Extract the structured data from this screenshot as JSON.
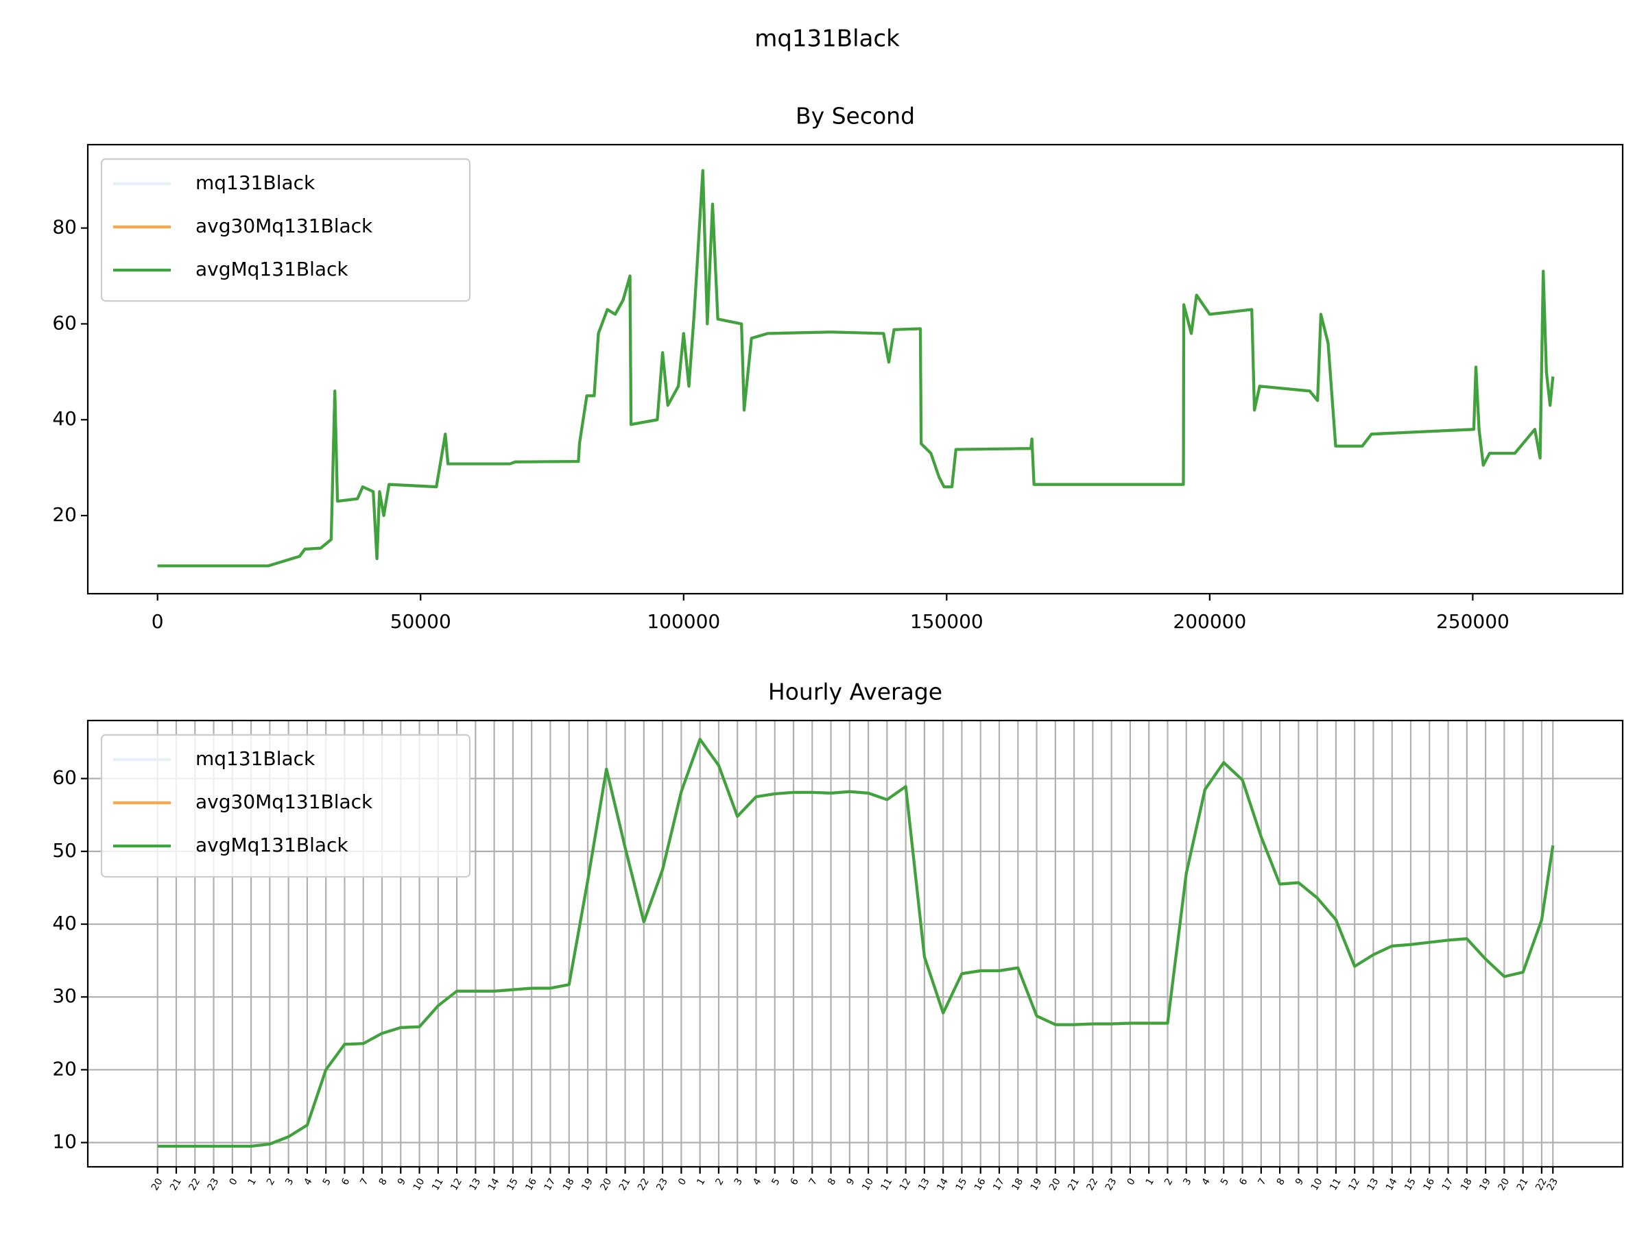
{
  "title": "mq131Black",
  "chart_data": [
    {
      "type": "line",
      "title": "By Second",
      "x": [
        0,
        21000,
        24000,
        27000,
        28000,
        31000,
        33000,
        33700,
        34200,
        38000,
        39000,
        41000,
        41700,
        42200,
        43000,
        44000,
        53000,
        54700,
        55200,
        67000,
        68000,
        80000,
        80200,
        81600,
        83000,
        83800,
        85500,
        87000,
        88500,
        89800,
        90000,
        95000,
        96000,
        97000,
        99000,
        100000,
        101000,
        102000,
        103650,
        104500,
        105500,
        106500,
        111000,
        111500,
        112900,
        116000,
        128000,
        138000,
        139000,
        140000,
        145000,
        145150,
        147000,
        148560,
        149500,
        151000,
        151760,
        166000,
        166200,
        166600,
        195000,
        195070,
        196500,
        197500,
        200000,
        208000,
        208500,
        209500,
        219000,
        220500,
        221130,
        222500,
        223940,
        229000,
        230750,
        250200,
        250600,
        251200,
        252000,
        253200,
        258000,
        261800,
        262800,
        263400,
        264000,
        264700,
        265240
      ],
      "series": [
        {
          "name": "mq131Black",
          "color": "#e6eff7",
          "values": [
            9.5,
            9.5,
            10.5,
            11.5,
            13,
            13.2,
            15,
            46,
            23,
            23.5,
            26,
            25,
            11,
            25,
            20,
            26.5,
            26,
            37,
            30.8,
            30.8,
            31.2,
            31.3,
            35,
            45,
            45,
            58,
            63,
            62,
            65,
            70,
            39,
            40,
            54,
            43,
            47,
            58,
            47,
            62,
            92,
            60,
            85,
            61,
            60,
            42,
            57,
            58,
            58.3,
            58,
            52,
            58.8,
            59,
            35,
            33,
            28,
            26,
            26,
            33.8,
            34,
            36,
            26.5,
            26.5,
            64,
            58,
            66,
            62,
            63,
            42,
            47,
            46,
            44,
            62,
            56,
            34.5,
            34.5,
            37,
            38,
            51,
            38,
            30.5,
            33,
            33,
            38,
            32,
            71,
            50,
            43,
            49
          ]
        },
        {
          "name": "avg30Mq131Black",
          "color": "#ffa64d",
          "values": [
            9.5,
            9.5,
            10.5,
            11.5,
            13,
            13.2,
            15,
            46,
            23,
            23.5,
            26,
            25,
            11,
            25,
            20,
            26.5,
            26,
            37,
            30.8,
            30.8,
            31.2,
            31.3,
            35,
            45,
            45,
            58,
            63,
            62,
            65,
            70,
            39,
            40,
            54,
            43,
            47,
            58,
            47,
            62,
            92,
            60,
            85,
            61,
            60,
            42,
            57,
            58,
            58.3,
            58,
            52,
            58.8,
            59,
            35,
            33,
            28,
            26,
            26,
            33.8,
            34,
            36,
            26.5,
            26.5,
            64,
            58,
            66,
            62,
            63,
            42,
            47,
            46,
            44,
            62,
            56,
            34.5,
            34.5,
            37,
            38,
            51,
            38,
            30.5,
            33,
            33,
            38,
            32,
            71,
            50,
            43,
            49
          ]
        },
        {
          "name": "avgMq131Black",
          "color": "#3ea33e",
          "values": [
            9.5,
            9.5,
            10.5,
            11.5,
            13,
            13.2,
            15,
            46,
            23,
            23.5,
            26,
            25,
            11,
            25,
            20,
            26.5,
            26,
            37,
            30.8,
            30.8,
            31.2,
            31.3,
            35,
            45,
            45,
            58,
            63,
            62,
            65,
            70,
            39,
            40,
            54,
            43,
            47,
            58,
            47,
            62,
            92,
            60,
            85,
            61,
            60,
            42,
            57,
            58,
            58.3,
            58,
            52,
            58.8,
            59,
            35,
            33,
            28,
            26,
            26,
            33.8,
            34,
            36,
            26.5,
            26.5,
            64,
            58,
            66,
            62,
            63,
            42,
            47,
            46,
            44,
            62,
            56,
            34.5,
            34.5,
            37,
            38,
            51,
            38,
            30.5,
            33,
            33,
            38,
            32,
            71,
            50,
            43,
            49
          ]
        }
      ],
      "xlim": [
        -13260,
        278500
      ],
      "ylim": [
        3.7,
        97.4
      ],
      "xticks": [
        0,
        50000,
        100000,
        150000,
        200000,
        250000
      ],
      "yticks": [
        20,
        40,
        60,
        80
      ],
      "grid": false,
      "legend": "upper left"
    },
    {
      "type": "line",
      "title": "Hourly Average",
      "x": [
        0,
        1,
        2,
        3,
        4,
        5,
        6,
        7,
        8,
        9,
        10,
        11,
        12,
        13,
        14,
        15,
        16,
        17,
        18,
        19,
        20,
        21,
        22,
        23,
        24,
        25,
        26,
        27,
        28,
        29,
        30,
        31,
        32,
        33,
        34,
        35,
        36,
        37,
        38,
        39,
        40,
        41,
        42,
        43,
        44,
        45,
        46,
        47,
        48,
        49,
        50,
        51,
        52,
        53,
        54,
        55,
        56,
        57,
        58,
        59,
        60,
        61,
        62,
        63,
        64,
        65,
        66,
        67,
        68,
        69,
        70,
        71,
        72,
        73,
        74,
        74.6
      ],
      "series": [
        {
          "name": "mq131Black",
          "color": "#e6eff7",
          "values": [
            9.5,
            9.5,
            9.5,
            9.5,
            9.5,
            9.5,
            9.8,
            10.8,
            12.4,
            20,
            23.5,
            23.6,
            25,
            25.8,
            25.9,
            28.8,
            30.8,
            30.8,
            30.8,
            31,
            31.2,
            31.2,
            31.7,
            46,
            61.3,
            50.5,
            40.3,
            47.5,
            58.2,
            65.4,
            61.8,
            54.8,
            57.5,
            57.9,
            58.1,
            58.1,
            58,
            58.2,
            58,
            57.1,
            58.9,
            35.5,
            27.8,
            33.2,
            33.6,
            33.6,
            34,
            27.4,
            26.2,
            26.2,
            26.3,
            26.3,
            26.4,
            26.4,
            26.4,
            47,
            58.5,
            62.2,
            59.8,
            52,
            45.5,
            45.7,
            43.6,
            40.6,
            34.2,
            35.8,
            37,
            37.2,
            37.5,
            37.8,
            38,
            35.2,
            32.8,
            33.4,
            40.6,
            50.8
          ]
        },
        {
          "name": "avg30Mq131Black",
          "color": "#ffa64d",
          "values": [
            9.5,
            9.5,
            9.5,
            9.5,
            9.5,
            9.5,
            9.8,
            10.8,
            12.4,
            20,
            23.5,
            23.6,
            25,
            25.8,
            25.9,
            28.8,
            30.8,
            30.8,
            30.8,
            31,
            31.2,
            31.2,
            31.7,
            46,
            61.3,
            50.5,
            40.3,
            47.5,
            58.2,
            65.4,
            61.8,
            54.8,
            57.5,
            57.9,
            58.1,
            58.1,
            58,
            58.2,
            58,
            57.1,
            58.9,
            35.5,
            27.8,
            33.2,
            33.6,
            33.6,
            34,
            27.4,
            26.2,
            26.2,
            26.3,
            26.3,
            26.4,
            26.4,
            26.4,
            47,
            58.5,
            62.2,
            59.8,
            52,
            45.5,
            45.7,
            43.6,
            40.6,
            34.2,
            35.8,
            37,
            37.2,
            37.5,
            37.8,
            38,
            35.2,
            32.8,
            33.4,
            40.6,
            50.8
          ]
        },
        {
          "name": "avgMq131Black",
          "color": "#3ea33e",
          "values": [
            9.5,
            9.5,
            9.5,
            9.5,
            9.5,
            9.5,
            9.8,
            10.8,
            12.4,
            20,
            23.5,
            23.6,
            25,
            25.8,
            25.9,
            28.8,
            30.8,
            30.8,
            30.8,
            31,
            31.2,
            31.2,
            31.7,
            46,
            61.3,
            50.5,
            40.3,
            47.5,
            58.2,
            65.4,
            61.8,
            54.8,
            57.5,
            57.9,
            58.1,
            58.1,
            58,
            58.2,
            58,
            57.1,
            58.9,
            35.5,
            27.8,
            33.2,
            33.6,
            33.6,
            34,
            27.4,
            26.2,
            26.2,
            26.3,
            26.3,
            26.4,
            26.4,
            26.4,
            47,
            58.5,
            62.2,
            59.8,
            52,
            45.5,
            45.7,
            43.6,
            40.6,
            34.2,
            35.8,
            37,
            37.2,
            37.5,
            37.8,
            38,
            35.2,
            32.8,
            33.4,
            40.6,
            50.8
          ]
        }
      ],
      "xlim": [
        -3.73,
        78.33
      ],
      "ylim": [
        6.67,
        67.97
      ],
      "xticks": [
        {
          "value": 0,
          "label": "20"
        },
        {
          "value": 1,
          "label": "21"
        },
        {
          "value": 2,
          "label": "22"
        },
        {
          "value": 3,
          "label": "23"
        },
        {
          "value": 4,
          "label": "0"
        },
        {
          "value": 5,
          "label": "1"
        },
        {
          "value": 6,
          "label": "2"
        },
        {
          "value": 7,
          "label": "3"
        },
        {
          "value": 8,
          "label": "4"
        },
        {
          "value": 9,
          "label": "5"
        },
        {
          "value": 10,
          "label": "6"
        },
        {
          "value": 11,
          "label": "7"
        },
        {
          "value": 12,
          "label": "8"
        },
        {
          "value": 13,
          "label": "9"
        },
        {
          "value": 14,
          "label": "10"
        },
        {
          "value": 15,
          "label": "11"
        },
        {
          "value": 16,
          "label": "12"
        },
        {
          "value": 17,
          "label": "13"
        },
        {
          "value": 18,
          "label": "14"
        },
        {
          "value": 19,
          "label": "15"
        },
        {
          "value": 20,
          "label": "16"
        },
        {
          "value": 21,
          "label": "17"
        },
        {
          "value": 22,
          "label": "18"
        },
        {
          "value": 23,
          "label": "19"
        },
        {
          "value": 24,
          "label": "20"
        },
        {
          "value": 25,
          "label": "21"
        },
        {
          "value": 26,
          "label": "22"
        },
        {
          "value": 27,
          "label": "23"
        },
        {
          "value": 28,
          "label": "0"
        },
        {
          "value": 29,
          "label": "1"
        },
        {
          "value": 30,
          "label": "2"
        },
        {
          "value": 31,
          "label": "3"
        },
        {
          "value": 32,
          "label": "4"
        },
        {
          "value": 33,
          "label": "5"
        },
        {
          "value": 34,
          "label": "6"
        },
        {
          "value": 35,
          "label": "7"
        },
        {
          "value": 36,
          "label": "8"
        },
        {
          "value": 37,
          "label": "9"
        },
        {
          "value": 38,
          "label": "10"
        },
        {
          "value": 39,
          "label": "11"
        },
        {
          "value": 40,
          "label": "12"
        },
        {
          "value": 41,
          "label": "13"
        },
        {
          "value": 42,
          "label": "14"
        },
        {
          "value": 43,
          "label": "15"
        },
        {
          "value": 44,
          "label": "16"
        },
        {
          "value": 45,
          "label": "17"
        },
        {
          "value": 46,
          "label": "18"
        },
        {
          "value": 47,
          "label": "19"
        },
        {
          "value": 48,
          "label": "20"
        },
        {
          "value": 49,
          "label": "21"
        },
        {
          "value": 50,
          "label": "22"
        },
        {
          "value": 51,
          "label": "23"
        },
        {
          "value": 52,
          "label": "0"
        },
        {
          "value": 53,
          "label": "1"
        },
        {
          "value": 54,
          "label": "2"
        },
        {
          "value": 55,
          "label": "3"
        },
        {
          "value": 56,
          "label": "4"
        },
        {
          "value": 57,
          "label": "5"
        },
        {
          "value": 58,
          "label": "6"
        },
        {
          "value": 59,
          "label": "7"
        },
        {
          "value": 60,
          "label": "8"
        },
        {
          "value": 61,
          "label": "9"
        },
        {
          "value": 62,
          "label": "10"
        },
        {
          "value": 63,
          "label": "11"
        },
        {
          "value": 64,
          "label": "12"
        },
        {
          "value": 65,
          "label": "13"
        },
        {
          "value": 66,
          "label": "14"
        },
        {
          "value": 67,
          "label": "15"
        },
        {
          "value": 68,
          "label": "16"
        },
        {
          "value": 69,
          "label": "17"
        },
        {
          "value": 70,
          "label": "18"
        },
        {
          "value": 71,
          "label": "19"
        },
        {
          "value": 72,
          "label": "20"
        },
        {
          "value": 73,
          "label": "21"
        },
        {
          "value": 74,
          "label": "22"
        },
        {
          "value": 74.6,
          "label": "23"
        }
      ],
      "yticks": [
        10,
        20,
        30,
        40,
        50,
        60
      ],
      "grid": true,
      "legend": "upper left"
    }
  ]
}
